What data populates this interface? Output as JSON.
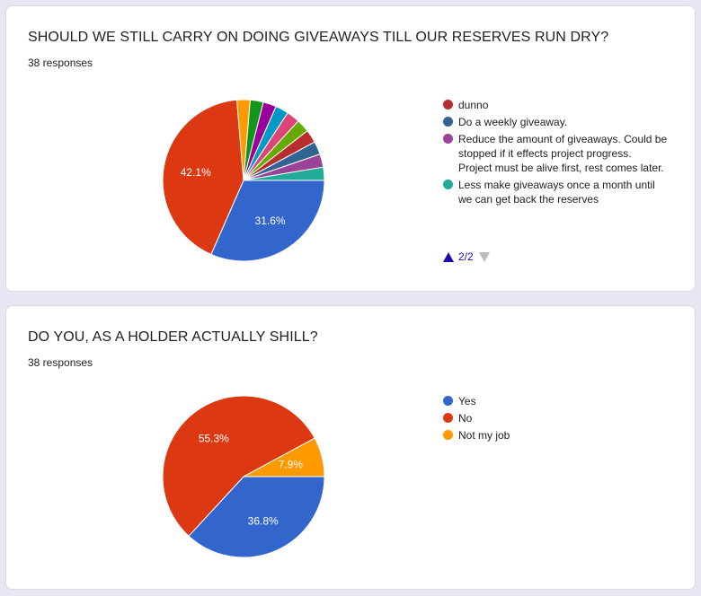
{
  "charts": [
    {
      "title": "SHOULD WE STILL CARRY ON DOING GIVEAWAYS TILL OUR RESERVES RUN DRY?",
      "responses": "38 responses",
      "pager": "2/2",
      "legend": [
        {
          "label": "dunno",
          "color": "#b82e2e"
        },
        {
          "label": "Do a weekly giveaway.",
          "color": "#316395"
        },
        {
          "label": "Reduce the amount of giveaways. Could be stopped if it effects project progress. Project must be alive first, rest comes later.",
          "color": "#994499"
        },
        {
          "label": "Less make giveaways once a month until we can get back the reserves",
          "color": "#22aa99"
        }
      ]
    },
    {
      "title": "DO YOU, AS A HOLDER ACTUALLY SHILL?",
      "responses": "38 responses",
      "legend": [
        {
          "label": "Yes",
          "color": "#3366cc"
        },
        {
          "label": "No",
          "color": "#dc3912"
        },
        {
          "label": "Not my job",
          "color": "#ff9900"
        }
      ]
    }
  ],
  "chart_data": [
    {
      "type": "pie",
      "title": "SHOULD WE STILL CARRY ON DOING GIVEAWAYS TILL OUR RESERVES RUN DRY?",
      "slices": [
        {
          "value": 12,
          "color": "#3366cc",
          "label": "31.6%"
        },
        {
          "value": 16,
          "color": "#dc3912",
          "label": "42.1%"
        },
        {
          "value": 1,
          "color": "#ff9900",
          "label": ""
        },
        {
          "value": 1,
          "color": "#109618",
          "label": ""
        },
        {
          "value": 1,
          "color": "#990099",
          "label": ""
        },
        {
          "value": 1,
          "color": "#0099c6",
          "label": ""
        },
        {
          "value": 1,
          "color": "#dd4477",
          "label": ""
        },
        {
          "value": 1,
          "color": "#66aa00",
          "label": ""
        },
        {
          "value": 1,
          "color": "#b82e2e",
          "label": ""
        },
        {
          "value": 1,
          "color": "#316395",
          "label": ""
        },
        {
          "value": 1,
          "color": "#994499",
          "label": ""
        },
        {
          "value": 1,
          "color": "#22aa99",
          "label": ""
        }
      ]
    },
    {
      "type": "pie",
      "title": "DO YOU, AS A HOLDER ACTUALLY SHILL?",
      "slices": [
        {
          "value": 14,
          "color": "#3366cc",
          "label": "36.8%"
        },
        {
          "value": 21,
          "color": "#dc3912",
          "label": "55.3%"
        },
        {
          "value": 3,
          "color": "#ff9900",
          "label": "7.9%"
        }
      ]
    }
  ]
}
